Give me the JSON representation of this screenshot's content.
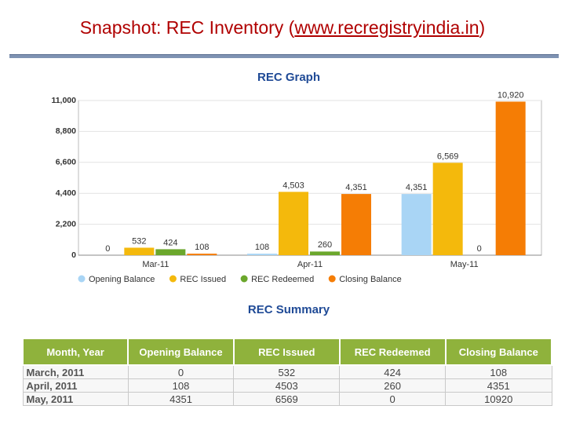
{
  "title": {
    "text": "Snapshot: REC Inventory (",
    "link": "www.recregistryindia.in",
    "suffix": ")"
  },
  "chart_data": {
    "type": "bar",
    "title": "REC Graph",
    "categories": [
      "Mar-11",
      "Apr-11",
      "May-11"
    ],
    "series": [
      {
        "name": "Opening Balance",
        "color": "#a9d5f5",
        "values": [
          0,
          108,
          4351
        ],
        "value_labels": [
          "0",
          "108",
          "4,351"
        ]
      },
      {
        "name": "REC Issued",
        "color": "#f4b90c",
        "values": [
          532,
          4503,
          6569
        ],
        "value_labels": [
          "532",
          "4,503",
          "6,569"
        ]
      },
      {
        "name": "REC Redeemed",
        "color": "#6ba72c",
        "values": [
          424,
          260,
          0
        ]
      },
      {
        "name": "Closing Balance",
        "color": "#f57d05",
        "values": [
          108,
          4351,
          10920
        ],
        "value_labels": [
          "108",
          "4,351",
          "10,920"
        ]
      }
    ],
    "ylim": [
      0,
      11000
    ],
    "yticks": [
      0,
      {
        "value": 2200,
        "label": "2,200"
      },
      {
        "value": 4400,
        "label": "4,400"
      },
      {
        "value": 6600,
        "label": "6,600"
      },
      {
        "value": 8800,
        "label": "8,800"
      },
      {
        "value": 11000,
        "label": "11,000"
      }
    ],
    "grid": true,
    "legend": "bottom"
  },
  "table": {
    "title": "REC Summary",
    "header": [
      "Month, Year",
      "Opening Balance",
      "REC Issued",
      "REC Redeemed",
      "Closing Balance"
    ],
    "rows": [
      [
        "March, 2011",
        0,
        532,
        424,
        108
      ],
      [
        "April, 2011",
        108,
        4503,
        260,
        4351
      ],
      [
        "May, 2011",
        4351,
        6569,
        0,
        10920
      ]
    ]
  }
}
